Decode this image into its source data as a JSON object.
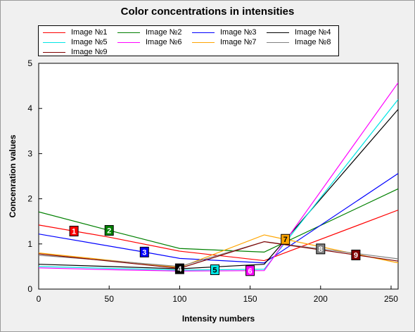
{
  "chart_data": {
    "type": "line",
    "title": "Color concentrations in intensities",
    "xlabel": "Intensity numbers",
    "ylabel": "Concenration values",
    "xlim": [
      0,
      255
    ],
    "ylim": [
      0,
      5
    ],
    "xticks": [
      0,
      50,
      100,
      150,
      200,
      250
    ],
    "yticks": [
      0,
      1,
      2,
      3,
      4,
      5
    ],
    "grid": false,
    "legend_position": "top",
    "series": [
      {
        "name": "Image №1",
        "color": "#ff0000",
        "marker": "1",
        "marker_x": 25,
        "x": [
          0,
          50,
          100,
          160,
          255
        ],
        "y": [
          1.42,
          1.15,
          0.84,
          0.63,
          1.75
        ]
      },
      {
        "name": "Image №2",
        "color": "#008000",
        "marker": "2",
        "marker_x": 50,
        "x": [
          0,
          50,
          100,
          160,
          255
        ],
        "y": [
          1.71,
          1.3,
          0.9,
          0.82,
          2.22
        ]
      },
      {
        "name": "Image №3",
        "color": "#0000ff",
        "marker": "3",
        "marker_x": 75,
        "x": [
          0,
          75,
          100,
          160,
          255
        ],
        "y": [
          1.22,
          0.82,
          0.68,
          0.58,
          2.56
        ]
      },
      {
        "name": "Image №4",
        "color": "#000000",
        "marker": "4",
        "marker_x": 100,
        "x": [
          0,
          50,
          100,
          160,
          255
        ],
        "y": [
          0.55,
          0.5,
          0.45,
          0.55,
          3.98
        ]
      },
      {
        "name": "Image №5",
        "color": "#00e5e5",
        "marker": "5",
        "marker_x": 125,
        "x": [
          0,
          50,
          100,
          160,
          255
        ],
        "y": [
          0.5,
          0.46,
          0.42,
          0.44,
          4.2
        ]
      },
      {
        "name": "Image №6",
        "color": "#ff00ff",
        "marker": "6",
        "marker_x": 150,
        "x": [
          0,
          50,
          100,
          160,
          255
        ],
        "y": [
          0.47,
          0.43,
          0.4,
          0.41,
          4.57
        ]
      },
      {
        "name": "Image №7",
        "color": "#ffa500",
        "marker": "7",
        "marker_x": 175,
        "x": [
          0,
          50,
          100,
          160,
          255
        ],
        "y": [
          0.8,
          0.64,
          0.48,
          1.2,
          0.58
        ]
      },
      {
        "name": "Image №8",
        "color": "#808080",
        "marker": "8",
        "marker_x": 200,
        "x": [
          0,
          50,
          100,
          160,
          255
        ],
        "y": [
          0.75,
          0.63,
          0.5,
          1.05,
          0.67
        ]
      },
      {
        "name": "Image №9",
        "color": "#800000",
        "marker": "9",
        "marker_x": 225,
        "x": [
          0,
          50,
          100,
          160,
          255
        ],
        "y": [
          0.78,
          0.62,
          0.46,
          1.05,
          0.62
        ]
      }
    ]
  }
}
